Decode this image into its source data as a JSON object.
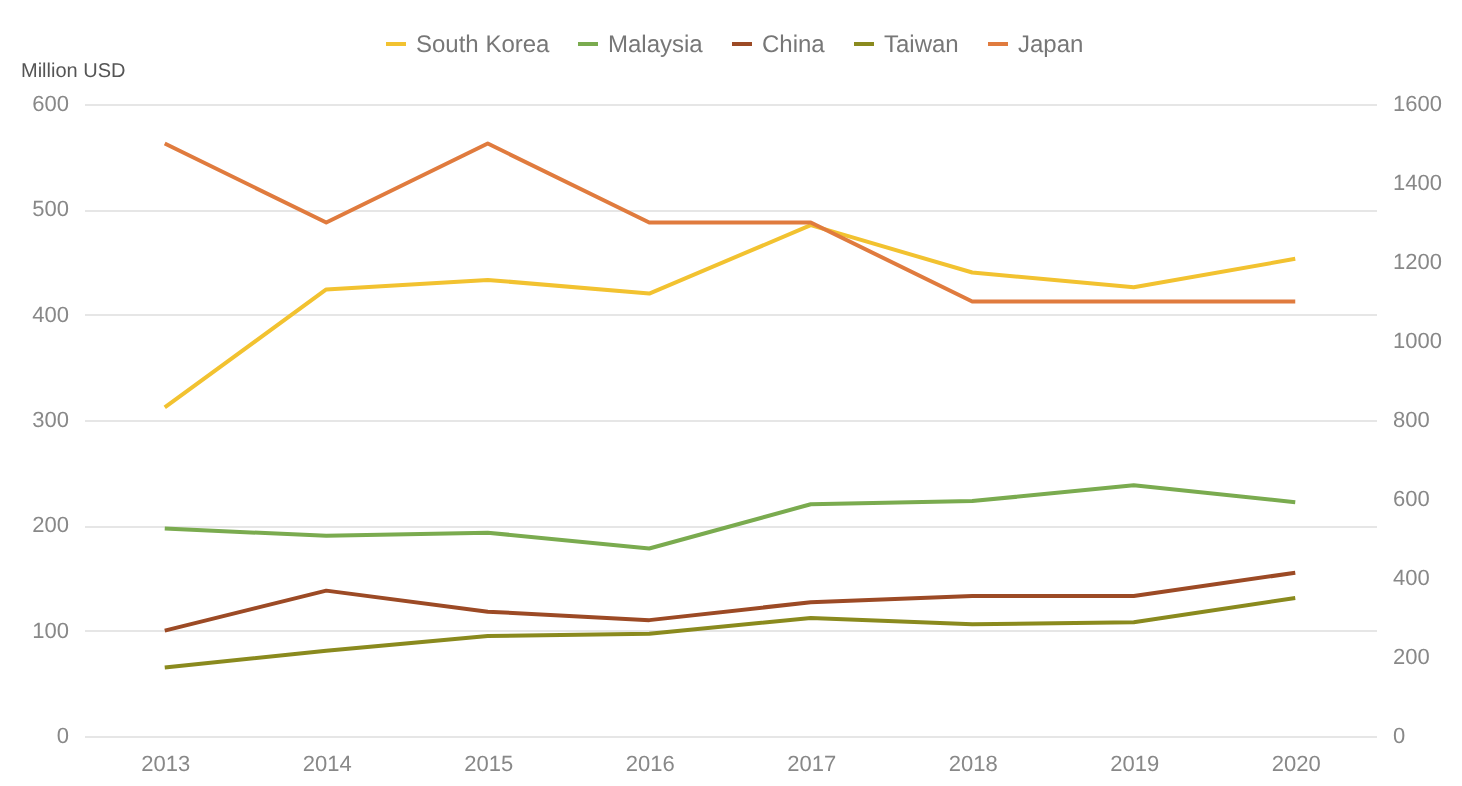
{
  "chart_data": {
    "type": "line",
    "ylabel": "Million USD",
    "categories": [
      "2013",
      "2014",
      "2015",
      "2016",
      "2017",
      "2018",
      "2019",
      "2020"
    ],
    "series": [
      {
        "name": "South Korea",
        "color": "#f2c230",
        "values": [
          312,
          424,
          433,
          420,
          485,
          440,
          426,
          453
        ]
      },
      {
        "name": "Malaysia",
        "color": "#7aab4f",
        "values": [
          197,
          190,
          193,
          178,
          220,
          223,
          238,
          222
        ]
      },
      {
        "name": "China",
        "color": "#9c4a25",
        "values": [
          100,
          138,
          118,
          110,
          127,
          133,
          133,
          155
        ]
      },
      {
        "name": "Taiwan",
        "color": "#8a8a1e",
        "values": [
          65,
          81,
          95,
          97,
          112,
          106,
          108,
          131
        ]
      },
      {
        "name": "Japan",
        "color": "#e07b3e",
        "axis": "y2",
        "values": [
          1500,
          1300,
          1500,
          1300,
          1300,
          1100,
          1100,
          1100
        ]
      }
    ],
    "ylim": [
      0,
      600
    ],
    "yticks": [
      0,
      100,
      200,
      300,
      400,
      500,
      600
    ],
    "y2lim": [
      0,
      1600
    ],
    "y2ticks": [
      0,
      200,
      400,
      600,
      800,
      1000,
      1200,
      1400,
      1600
    ],
    "grid": "y",
    "legend": "top",
    "marker": "none",
    "line_style": "solid"
  }
}
